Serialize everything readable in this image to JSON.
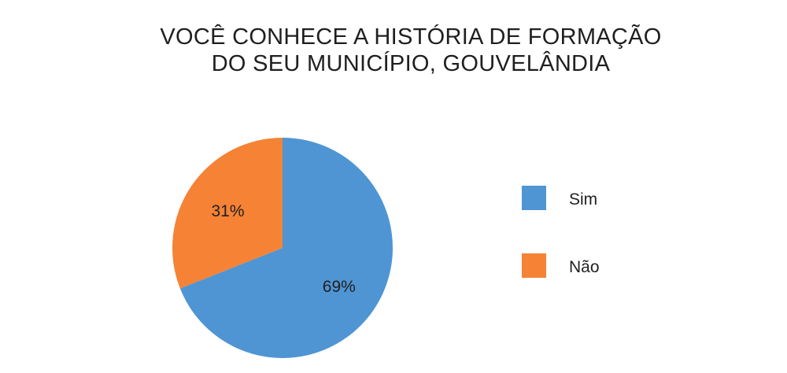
{
  "chart_data": {
    "type": "pie",
    "title": "VOCÊ CONHECE A HISTÓRIA DE FORMAÇÃO DO SEU MUNICÍPIO, GOUVELÂNDIA",
    "title_lines": [
      "VOCÊ CONHECE A HISTÓRIA DE FORMAÇÃO",
      "DO SEU MUNICÍPIO, GOUVELÂNDIA"
    ],
    "categories": [
      "Sim",
      "Não"
    ],
    "values": [
      69,
      31
    ],
    "data_labels": [
      "69%",
      "31%"
    ],
    "colors": [
      "#4f95d3",
      "#f58235"
    ],
    "legend_position": "right"
  }
}
